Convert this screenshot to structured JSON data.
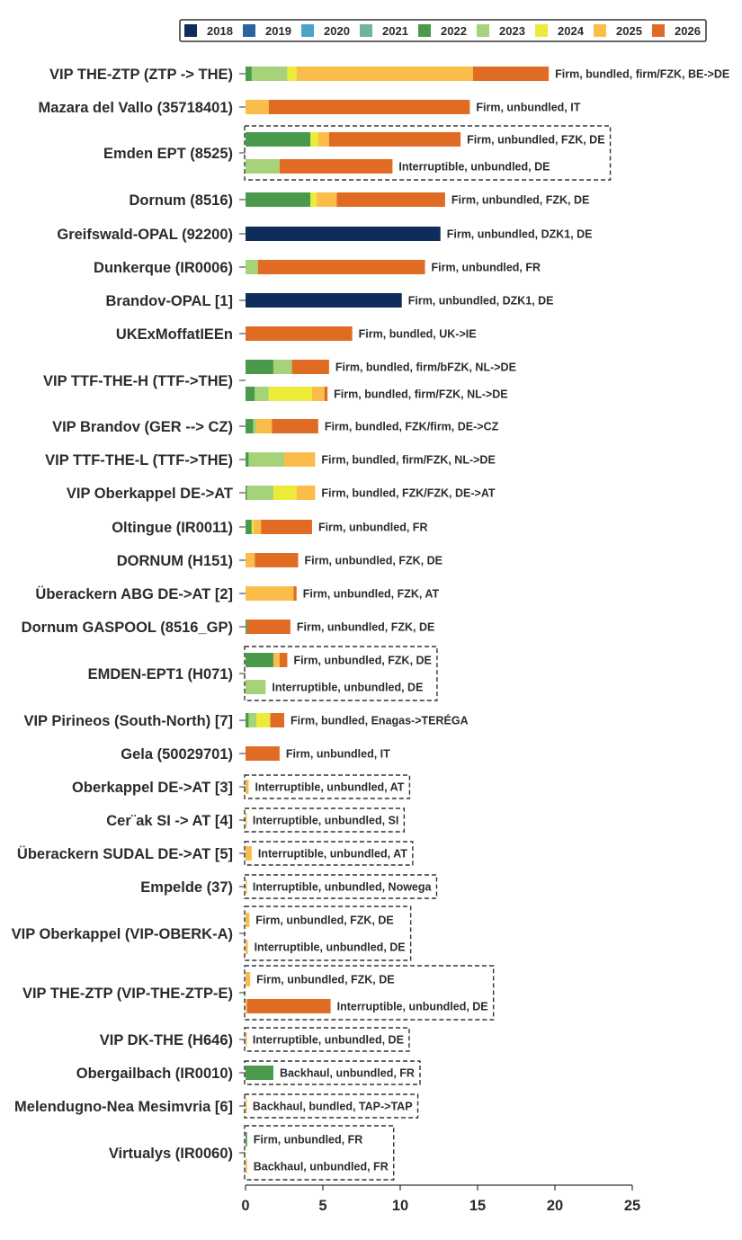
{
  "chart_data": {
    "type": "bar",
    "orientation": "horizontal",
    "stacked": true,
    "title": "",
    "xlabel": "",
    "ylabel": "",
    "xlim": [
      0,
      25
    ],
    "xticks": [
      0,
      5,
      10,
      15,
      20,
      25
    ],
    "grid": false,
    "legend": {
      "placement": "top",
      "entries": [
        "2018",
        "2019",
        "2020",
        "2021",
        "2022",
        "2023",
        "2024",
        "2025",
        "2026"
      ]
    },
    "series_colors": {
      "2018": "#0f2d5a",
      "2019": "#2a64a0",
      "2020": "#4aa3c8",
      "2021": "#6fb4a0",
      "2022": "#4a9a4c",
      "2023": "#a6d27a",
      "2024": "#ebeb3a",
      "2025": "#fbbd4a",
      "2026": "#e06c24"
    },
    "series_order": [
      "2018",
      "2019",
      "2020",
      "2021",
      "2022",
      "2023",
      "2024",
      "2025",
      "2026"
    ],
    "categories": [
      {
        "name": "VIP THE-ZTP (ZTP -> THE)",
        "boxed": false,
        "bars": [
          {
            "label": "Firm, bundled, firm/FZK, BE->DE",
            "values": {
              "2022": 0.4,
              "2023": 2.3,
              "2024": 0.6,
              "2025": 11.4,
              "2026": 4.9
            }
          }
        ]
      },
      {
        "name": "Mazara del Vallo (35718401)",
        "boxed": false,
        "bars": [
          {
            "label": "Firm, unbundled, IT",
            "values": {
              "2025": 1.5,
              "2026": 13.0
            }
          }
        ]
      },
      {
        "name": "Emden EPT (8525)",
        "boxed": true,
        "bars": [
          {
            "label": "Firm, unbundled, FZK, DE",
            "values": {
              "2022": 4.2,
              "2024": 0.5,
              "2025": 0.7,
              "2026": 8.5
            }
          },
          {
            "label": "Interruptible, unbundled, DE",
            "values": {
              "2023": 2.2,
              "2026": 7.3
            }
          }
        ]
      },
      {
        "name": "Dornum (8516)",
        "boxed": false,
        "bars": [
          {
            "label": "Firm, unbundled, FZK, DE",
            "values": {
              "2022": 4.2,
              "2024": 0.4,
              "2025": 1.3,
              "2026": 7.0
            }
          }
        ]
      },
      {
        "name": "Greifswald-OPAL (92200)",
        "boxed": false,
        "bars": [
          {
            "label": "Firm, unbundled, DZK1, DE",
            "values": {
              "2018": 12.6
            }
          }
        ]
      },
      {
        "name": "Dunkerque (IR0006)",
        "boxed": false,
        "bars": [
          {
            "label": "Firm, unbundled, FR",
            "values": {
              "2023": 0.8,
              "2026": 10.8
            }
          }
        ]
      },
      {
        "name": "Brandov-OPAL [1]",
        "boxed": false,
        "bars": [
          {
            "label": "Firm, unbundled, DZK1, DE",
            "values": {
              "2018": 10.1
            }
          }
        ]
      },
      {
        "name": "UKExMoffatIEEn",
        "boxed": false,
        "bars": [
          {
            "label": "Firm, bundled, UK->IE",
            "values": {
              "2026": 6.9
            }
          }
        ]
      },
      {
        "name": "VIP TTF-THE-H (TTF->THE)",
        "boxed": false,
        "bars": [
          {
            "label": "Firm, bundled, firm/bFZK, NL->DE",
            "values": {
              "2022": 1.8,
              "2023": 1.2,
              "2026": 2.4
            }
          },
          {
            "label": "Firm, bundled, firm/FZK, NL->DE",
            "values": {
              "2022": 0.6,
              "2023": 0.9,
              "2024": 2.8,
              "2025": 0.8,
              "2026": 0.2
            }
          }
        ]
      },
      {
        "name": "VIP Brandov (GER --> CZ)",
        "boxed": false,
        "bars": [
          {
            "label": "Firm, bundled, FZK/firm, DE->CZ",
            "values": {
              "2022": 0.5,
              "2023": 0.2,
              "2025": 1.0,
              "2026": 3.0
            }
          }
        ]
      },
      {
        "name": "VIP TTF-THE-L (TTF->THE)",
        "boxed": false,
        "bars": [
          {
            "label": "Firm, bundled, firm/FZK, NL->DE",
            "values": {
              "2022": 0.2,
              "2023": 2.3,
              "2025": 2.0
            }
          }
        ]
      },
      {
        "name": "VIP Oberkappel DE->AT",
        "boxed": false,
        "bars": [
          {
            "label": "Firm, bundled, FZK/FZK, DE->AT",
            "values": {
              "2022": 0.1,
              "2023": 1.7,
              "2024": 1.5,
              "2025": 1.2
            }
          }
        ]
      },
      {
        "name": "Oltingue (IR0011)",
        "boxed": false,
        "bars": [
          {
            "label": "Firm, unbundled, FR",
            "values": {
              "2022": 0.4,
              "2024": 0.1,
              "2025": 0.5,
              "2026": 3.3
            }
          }
        ]
      },
      {
        "name": "DORNUM (H151)",
        "boxed": false,
        "bars": [
          {
            "label": "Firm, unbundled, FZK, DE",
            "values": {
              "2025": 0.6,
              "2026": 2.8
            }
          }
        ]
      },
      {
        "name": "Überackern ABG DE->AT [2]",
        "boxed": false,
        "bars": [
          {
            "label": "Firm, unbundled, FZK, AT",
            "values": {
              "2025": 3.1,
              "2026": 0.2
            }
          }
        ]
      },
      {
        "name": "Dornum GASPOOL (8516_GP)",
        "boxed": false,
        "bars": [
          {
            "label": "Firm, unbundled, FZK, DE",
            "values": {
              "2022": 0.1,
              "2026": 2.8
            }
          }
        ]
      },
      {
        "name": "EMDEN-EPT1 (H071)",
        "boxed": true,
        "bars": [
          {
            "label": "Firm, unbundled, FZK, DE",
            "values": {
              "2022": 1.8,
              "2025": 0.4,
              "2026": 0.5
            }
          },
          {
            "label": "Interruptible, unbundled, DE",
            "values": {
              "2023": 1.3
            }
          }
        ]
      },
      {
        "name": "VIP Pirineos (South-North) [7]",
        "boxed": false,
        "bars": [
          {
            "label": "Firm, bundled, Enagas->TERÉGA",
            "values": {
              "2022": 0.2,
              "2023": 0.5,
              "2024": 0.9,
              "2026": 0.9
            }
          }
        ]
      },
      {
        "name": "Gela (50029701)",
        "boxed": false,
        "bars": [
          {
            "label": "Firm, unbundled, IT",
            "values": {
              "2026": 2.2
            }
          }
        ]
      },
      {
        "name": "Oberkappel DE->AT [3]",
        "boxed": true,
        "bars": [
          {
            "label": "Interruptible, unbundled, AT",
            "values": {
              "2025": 0.2
            }
          }
        ]
      },
      {
        "name": "Cer¨ak SI -> AT [4]",
        "boxed": true,
        "bars": [
          {
            "label": "Interruptible, unbundled, SI",
            "values": {
              "2025": 0.05
            }
          }
        ]
      },
      {
        "name": "Überackern SUDAL DE->AT [5]",
        "boxed": true,
        "bars": [
          {
            "label": "Interruptible, unbundled, AT",
            "values": {
              "2025": 0.4
            }
          }
        ]
      },
      {
        "name": "Empelde (37)",
        "boxed": true,
        "bars": [
          {
            "label": "Interruptible, unbundled, Nowega",
            "values": {
              "2025": 0.05
            }
          }
        ]
      },
      {
        "name": "VIP Oberkappel (VIP-OBERK-A)",
        "boxed": true,
        "bars": [
          {
            "label": "Firm, unbundled, FZK, DE",
            "values": {
              "2025": 0.25
            }
          },
          {
            "label": "Interruptible, unbundled, DE",
            "values": {
              "2025": 0.15
            }
          }
        ]
      },
      {
        "name": "VIP THE-ZTP (VIP-THE-ZTP-E)",
        "boxed": true,
        "bars": [
          {
            "label": "Firm, unbundled, FZK, DE",
            "values": {
              "2025": 0.3
            }
          },
          {
            "label": "Interruptible, unbundled, DE",
            "values": {
              "2025": 0.1,
              "2026": 5.4
            }
          }
        ]
      },
      {
        "name": "VIP DK-THE (H646)",
        "boxed": true,
        "bars": [
          {
            "label": "Interruptible, unbundled, DE",
            "values": {
              "2025": 0.05
            }
          }
        ]
      },
      {
        "name": "Obergailbach (IR0010)",
        "boxed": true,
        "bars": [
          {
            "label": "Backhaul, unbundled, FR",
            "values": {
              "2022": 1.8
            }
          }
        ]
      },
      {
        "name": "Melendugno-Nea Mesimvria [6]",
        "boxed": true,
        "bars": [
          {
            "label": "Backhaul, bundled, TAP->TAP",
            "values": {
              "2025": 0.05
            }
          }
        ]
      },
      {
        "name": "Virtualys (IR0060)",
        "boxed": true,
        "bars": [
          {
            "label": "Firm, unbundled, FR",
            "values": {
              "2022": 0.1
            }
          },
          {
            "label": "Backhaul, unbundled, FR",
            "values": {
              "2025": 0.1
            }
          }
        ]
      }
    ]
  }
}
